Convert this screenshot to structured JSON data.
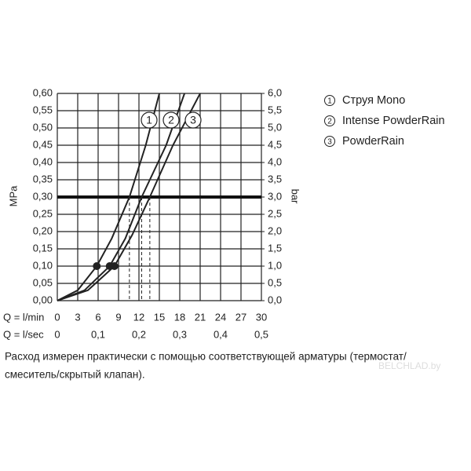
{
  "chart_data": {
    "type": "line",
    "y_label": "MPa",
    "y2_label": "bar",
    "x_label": "Q = l/min",
    "x2_label": "Q = l/sec",
    "xlim": [
      0,
      30
    ],
    "xticks": [
      0,
      3,
      6,
      9,
      12,
      15,
      18,
      21,
      24,
      27,
      30
    ],
    "x2lim": [
      0,
      0.5
    ],
    "x2ticks": [
      0,
      {
        "value": 0.1,
        "label": "0,1"
      },
      {
        "value": 0.2,
        "label": "0,2"
      },
      {
        "value": 0.3,
        "label": "0,3"
      },
      {
        "value": 0.4,
        "label": "0,4"
      },
      {
        "value": 0.5,
        "label": "0,5"
      }
    ],
    "ylim": [
      0,
      0.6
    ],
    "yticks": [
      {
        "value": 0,
        "label": "0,00"
      },
      {
        "value": 0.05,
        "label": "0,05"
      },
      {
        "value": 0.1,
        "label": "0,10"
      },
      {
        "value": 0.15,
        "label": "0,15"
      },
      {
        "value": 0.2,
        "label": "0,20"
      },
      {
        "value": 0.25,
        "label": "0,25"
      },
      {
        "value": 0.3,
        "label": "0,30"
      },
      {
        "value": 0.35,
        "label": "0,35"
      },
      {
        "value": 0.4,
        "label": "0,40"
      },
      {
        "value": 0.45,
        "label": "0,45"
      },
      {
        "value": 0.5,
        "label": "0,50"
      },
      {
        "value": 0.55,
        "label": "0,55"
      },
      {
        "value": 0.6,
        "label": "0,60"
      }
    ],
    "y2lim": [
      0,
      6
    ],
    "y2ticks": [
      {
        "value": 0,
        "label": "0,0"
      },
      {
        "value": 0.5,
        "label": "0,5"
      },
      {
        "value": 1,
        "label": "1,0"
      },
      {
        "value": 1.5,
        "label": "1,5"
      },
      {
        "value": 2,
        "label": "2,0"
      },
      {
        "value": 2.5,
        "label": "2,5"
      },
      {
        "value": 3,
        "label": "3,0"
      },
      {
        "value": 3.5,
        "label": "3,5"
      },
      {
        "value": 4,
        "label": "4,0"
      },
      {
        "value": 4.5,
        "label": "4,5"
      },
      {
        "value": 5,
        "label": "5,0"
      },
      {
        "value": 5.5,
        "label": "5,5"
      },
      {
        "value": 6,
        "label": "6,0"
      }
    ],
    "grid": true,
    "reference_y": 0.3,
    "series": [
      {
        "id": "1",
        "name": "Струя Mono",
        "color": "#222222",
        "x": [
          0,
          3,
          5.8,
          8,
          10.6,
          13,
          15
        ],
        "values": [
          0,
          0.03,
          0.1,
          0.18,
          0.3,
          0.45,
          0.6
        ],
        "point": {
          "x": 5.8,
          "y": 0.1
        }
      },
      {
        "id": "2",
        "name": "Intense PowderRain",
        "color": "#222222",
        "x": [
          0,
          4,
          7.7,
          10,
          12.4,
          16,
          18.7
        ],
        "values": [
          0,
          0.03,
          0.1,
          0.18,
          0.3,
          0.45,
          0.6
        ],
        "point": {
          "x": 7.7,
          "y": 0.1
        }
      },
      {
        "id": "3",
        "name": "PowderRain",
        "color": "#222222",
        "x": [
          0,
          4.5,
          8.4,
          11,
          13.6,
          17,
          21
        ],
        "values": [
          0,
          0.03,
          0.1,
          0.19,
          0.3,
          0.45,
          0.6
        ],
        "point": {
          "x": 8.4,
          "y": 0.1
        }
      }
    ],
    "note": [
      "Расход измерен практически с помощью соответствующей арматуры (термостат/",
      "смеситель/скрытый клапан)."
    ],
    "watermark": "BELCHLAD.by"
  }
}
